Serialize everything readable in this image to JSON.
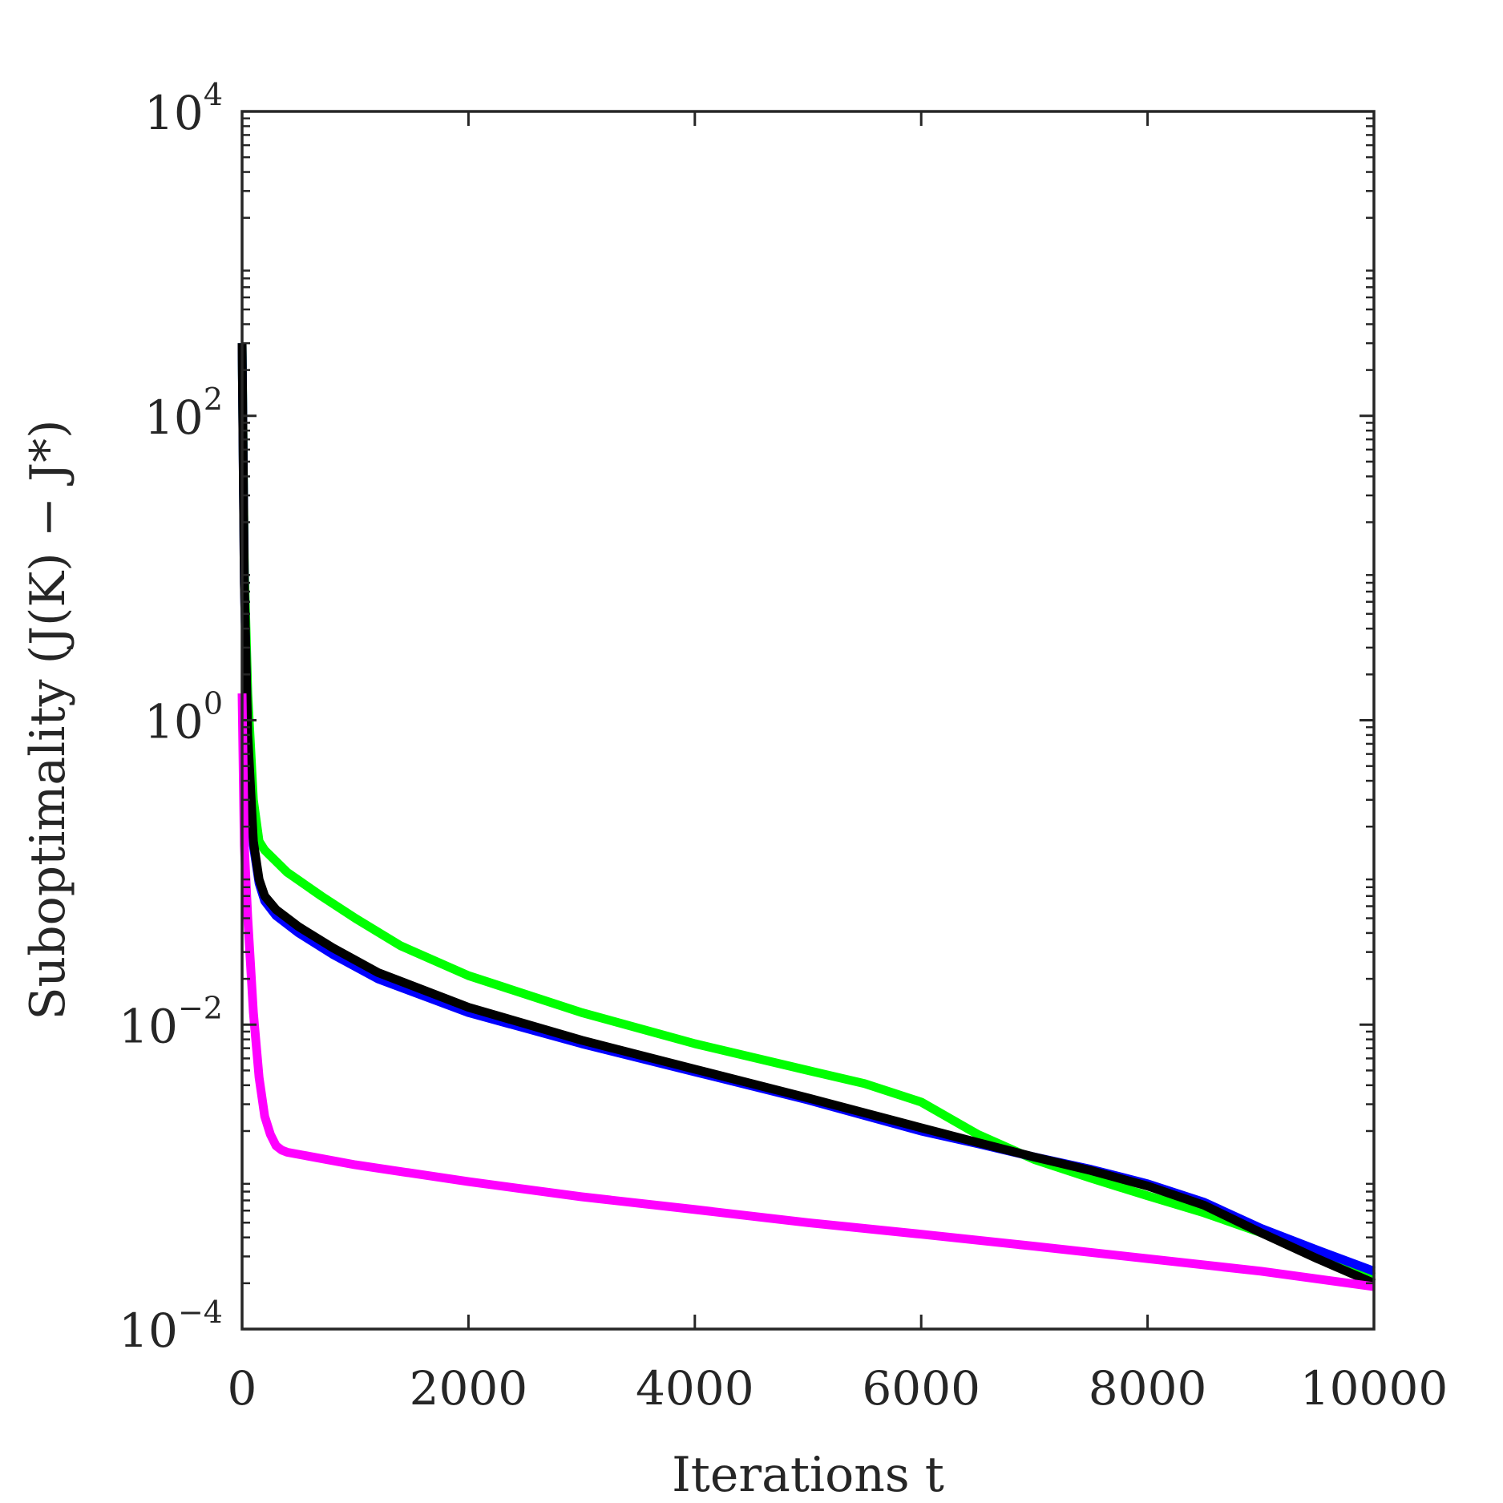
{
  "chart_data": {
    "type": "line",
    "xlabel": "Iterations t",
    "ylabel": "Suboptimality (J(K) − J*)",
    "xlim": [
      0,
      10000
    ],
    "ylim": [
      0.0001,
      10000
    ],
    "yscale": "log",
    "grid": false,
    "x_ticks": [
      {
        "value": 0,
        "label": "0"
      },
      {
        "value": 2000,
        "label": "2000"
      },
      {
        "value": 4000,
        "label": "4000"
      },
      {
        "value": 6000,
        "label": "6000"
      },
      {
        "value": 8000,
        "label": "8000"
      },
      {
        "value": 10000,
        "label": "10000"
      }
    ],
    "y_ticks": [
      {
        "value": 0.0001,
        "base": "10",
        "exp": "−4"
      },
      {
        "value": 0.01,
        "base": "10",
        "exp": "−2"
      },
      {
        "value": 1,
        "base": "10",
        "exp": "0"
      },
      {
        "value": 100,
        "base": "10",
        "exp": "2"
      },
      {
        "value": 10000,
        "base": "10",
        "exp": "4"
      }
    ],
    "series": [
      {
        "color": "#00ff00",
        "x": [
          0,
          20,
          50,
          100,
          150,
          200,
          400,
          700,
          1000,
          1400,
          2000,
          3000,
          4000,
          5000,
          5500,
          6000,
          6500,
          7000,
          7500,
          8000,
          8500,
          9000,
          9500,
          10000
        ],
        "y": [
          300,
          10,
          1.5,
          0.3,
          0.16,
          0.14,
          0.1,
          0.07,
          0.05,
          0.033,
          0.021,
          0.012,
          0.0075,
          0.005,
          0.0041,
          0.0031,
          0.0019,
          0.0013,
          0.00098,
          0.00075,
          0.00058,
          0.00043,
          0.00031,
          0.00022
        ]
      },
      {
        "color": "#0000ff",
        "x": [
          0,
          20,
          50,
          100,
          150,
          200,
          300,
          500,
          800,
          1200,
          2000,
          3000,
          4000,
          5000,
          6000,
          6500,
          7000,
          7500,
          8000,
          8500,
          9000,
          9500,
          10000
        ],
        "y": [
          300,
          8,
          0.7,
          0.15,
          0.085,
          0.065,
          0.052,
          0.04,
          0.029,
          0.02,
          0.012,
          0.0075,
          0.0049,
          0.0032,
          0.002,
          0.00165,
          0.00135,
          0.00112,
          0.0009,
          0.00068,
          0.00046,
          0.00033,
          0.00024
        ]
      },
      {
        "color": "#000000",
        "x": [
          0,
          20,
          50,
          100,
          150,
          200,
          300,
          500,
          800,
          1200,
          2000,
          3000,
          4000,
          5000,
          6000,
          6500,
          7000,
          7500,
          8000,
          8500,
          9000,
          9500,
          10000
        ],
        "y": [
          300,
          8,
          0.8,
          0.16,
          0.09,
          0.07,
          0.057,
          0.044,
          0.032,
          0.022,
          0.013,
          0.0079,
          0.0051,
          0.0033,
          0.0021,
          0.00168,
          0.00135,
          0.0011,
          0.00087,
          0.00065,
          0.00043,
          0.00029,
          0.0002
        ]
      },
      {
        "color": "#ff00ff",
        "x": [
          0,
          20,
          50,
          100,
          150,
          200,
          250,
          300,
          350,
          400,
          1000,
          2000,
          3000,
          4000,
          5000,
          6000,
          7000,
          8000,
          9000,
          10000
        ],
        "y": [
          1.5,
          0.15,
          0.05,
          0.012,
          0.0045,
          0.0025,
          0.0019,
          0.0016,
          0.0015,
          0.00145,
          0.0012,
          0.00093,
          0.00074,
          0.00061,
          0.0005,
          0.00042,
          0.00035,
          0.00029,
          0.00024,
          0.00019
        ]
      }
    ]
  }
}
